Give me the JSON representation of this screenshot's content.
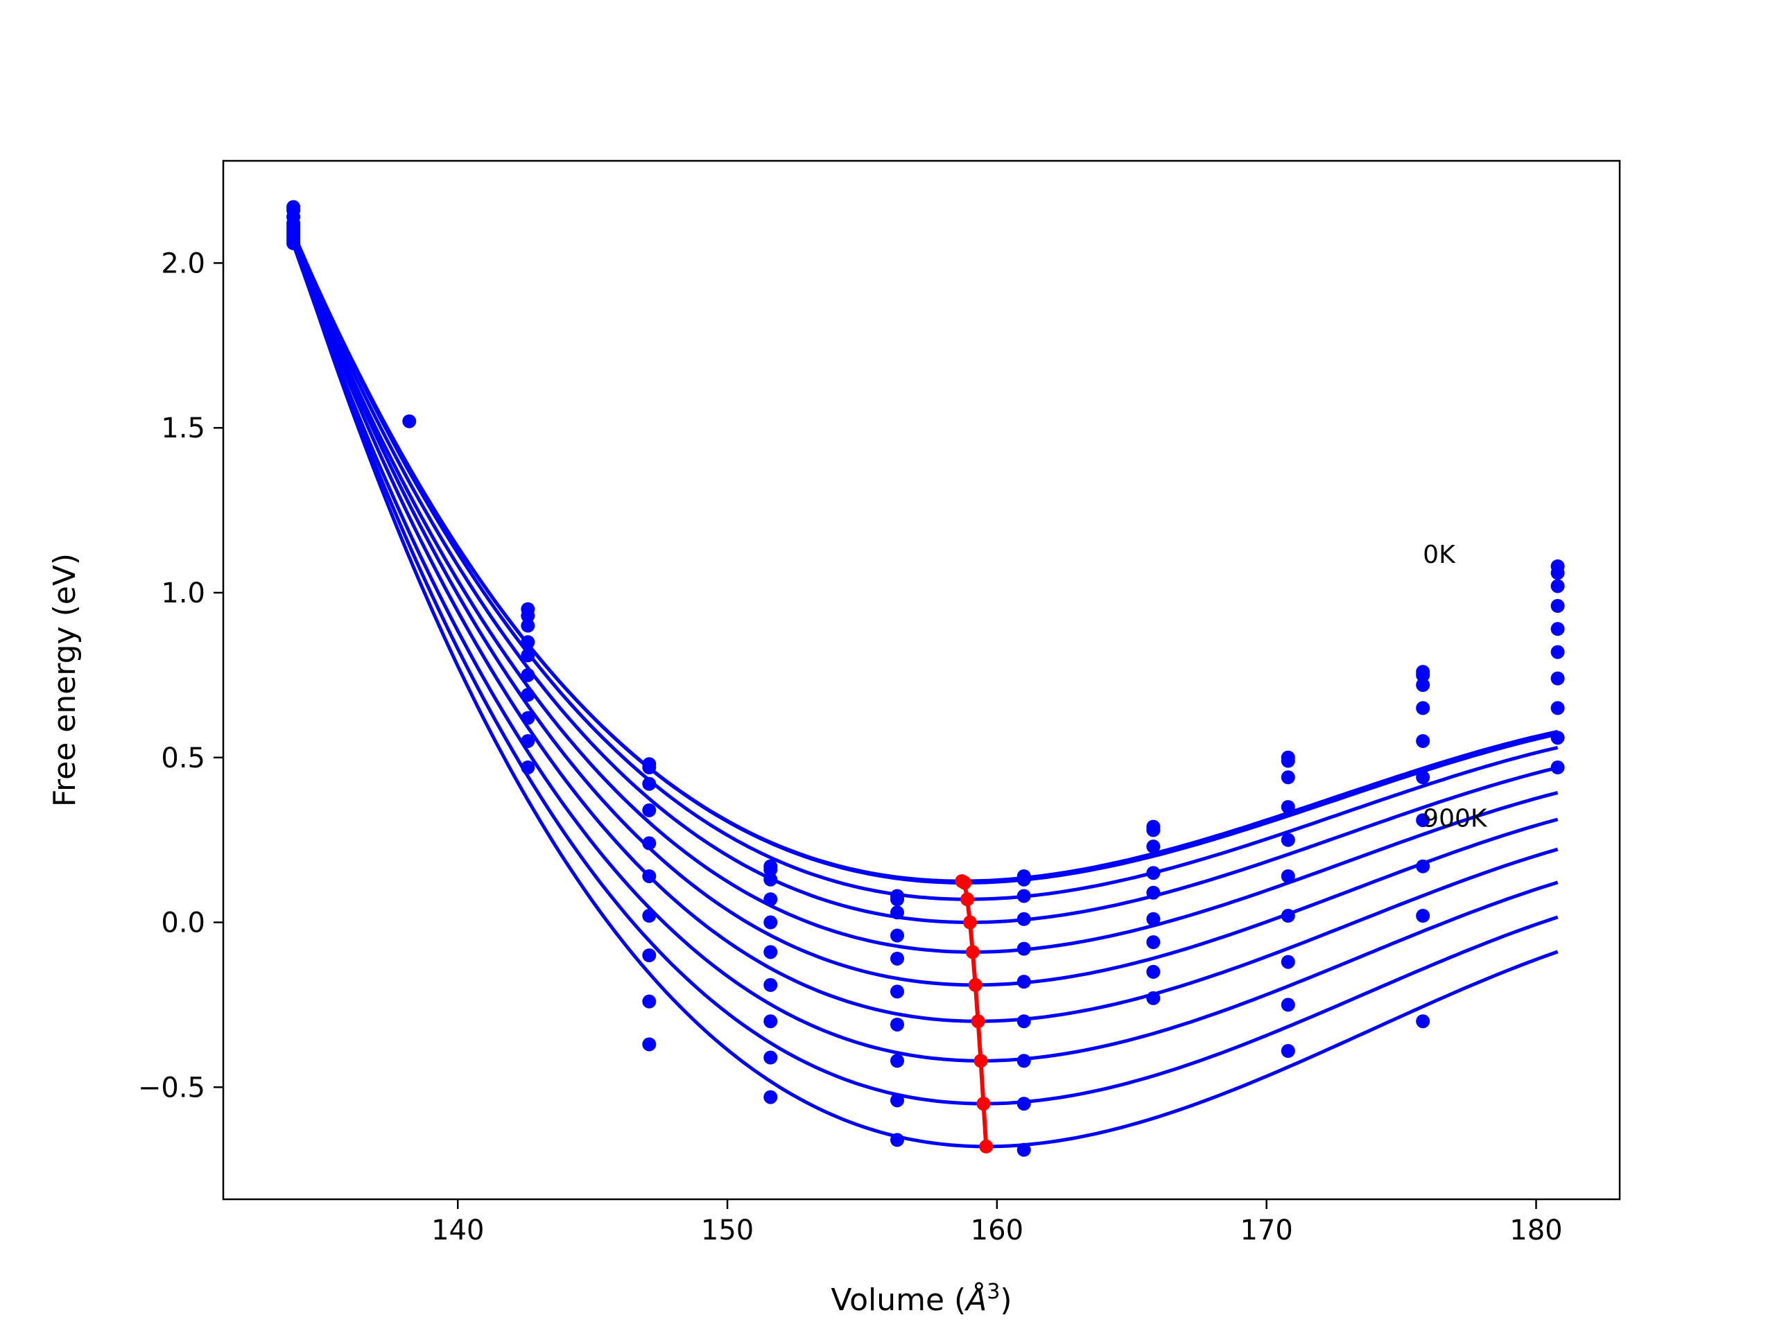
{
  "chart_data": {
    "type": "scatter",
    "title": "",
    "xlabel": "Volume (",
    "xlabel_unit": "Å",
    "xlabel_exp": "3",
    "xlabel_close": ")",
    "ylabel": "Free energy (eV)",
    "xlim": [
      131.3,
      183.1
    ],
    "ylim": [
      -0.84,
      2.31
    ],
    "xticks": [
      {
        "value": 140,
        "label": "140"
      },
      {
        "value": 150,
        "label": "150"
      },
      {
        "value": 160,
        "label": "160"
      },
      {
        "value": 170,
        "label": "170"
      },
      {
        "value": 180,
        "label": "180"
      }
    ],
    "yticks": [
      {
        "value": -0.5,
        "label": "−0.5"
      },
      {
        "value": 0.0,
        "label": "0.0"
      },
      {
        "value": 0.5,
        "label": "0.5"
      },
      {
        "value": 1.0,
        "label": "1.0"
      },
      {
        "value": 1.5,
        "label": "1.5"
      },
      {
        "value": 2.0,
        "label": "2.0"
      }
    ],
    "grid": false,
    "colors": {
      "curves": "#0000ff",
      "minima": "#ff0000"
    },
    "annotations": [
      {
        "text": "0K",
        "x": 175.8,
        "y": 1.12
      },
      {
        "text": "900K",
        "x": 175.8,
        "y": 0.32
      }
    ],
    "volumes": [
      133.9,
      138.2,
      142.6,
      147.1,
      151.6,
      156.3,
      161.0,
      165.8,
      170.8,
      175.8,
      180.8
    ],
    "series": [
      {
        "label": "0K",
        "minimum": [
          158.7,
          0.125
        ],
        "values": [
          2.17,
          1.52,
          0.95,
          0.48,
          0.17,
          0.08,
          0.14,
          0.29,
          0.5,
          0.76,
          1.08
        ]
      },
      {
        "minimum": [
          158.8,
          0.12
        ],
        "values": [
          2.16,
          null,
          0.93,
          0.47,
          0.16,
          0.07,
          0.13,
          0.28,
          0.49,
          0.75,
          1.06
        ]
      },
      {
        "minimum": [
          158.9,
          0.07
        ],
        "values": [
          2.14,
          null,
          0.9,
          0.42,
          0.13,
          0.03,
          0.08,
          0.23,
          0.44,
          0.72,
          1.02
        ]
      },
      {
        "minimum": [
          159.0,
          0.0
        ],
        "values": [
          2.12,
          null,
          0.85,
          0.34,
          0.07,
          -0.04,
          0.01,
          0.15,
          0.35,
          0.65,
          0.96
        ]
      },
      {
        "minimum": [
          159.1,
          -0.09
        ],
        "values": [
          2.11,
          null,
          0.81,
          0.24,
          0.0,
          -0.11,
          -0.08,
          0.09,
          0.25,
          0.55,
          0.89
        ]
      },
      {
        "minimum": [
          159.2,
          -0.19
        ],
        "values": [
          2.1,
          null,
          0.75,
          0.14,
          -0.09,
          -0.21,
          -0.18,
          0.01,
          0.14,
          0.44,
          0.82
        ]
      },
      {
        "minimum": [
          159.3,
          -0.3
        ],
        "values": [
          2.09,
          null,
          0.69,
          0.02,
          -0.19,
          -0.31,
          -0.3,
          -0.06,
          0.02,
          0.31,
          0.74
        ]
      },
      {
        "minimum": [
          159.4,
          -0.42
        ],
        "values": [
          2.08,
          null,
          0.62,
          -0.1,
          -0.3,
          -0.42,
          -0.42,
          -0.15,
          -0.12,
          0.17,
          0.65
        ]
      },
      {
        "minimum": [
          159.5,
          -0.55
        ],
        "values": [
          2.07,
          null,
          0.55,
          -0.24,
          -0.41,
          -0.54,
          -0.55,
          -0.23,
          -0.25,
          0.02,
          0.56
        ]
      },
      {
        "label": "900K",
        "minimum": [
          159.6,
          -0.68
        ],
        "values": [
          2.06,
          null,
          0.47,
          -0.37,
          -0.53,
          -0.66,
          -0.69,
          null,
          -0.39,
          -0.3,
          0.47
        ]
      }
    ]
  }
}
